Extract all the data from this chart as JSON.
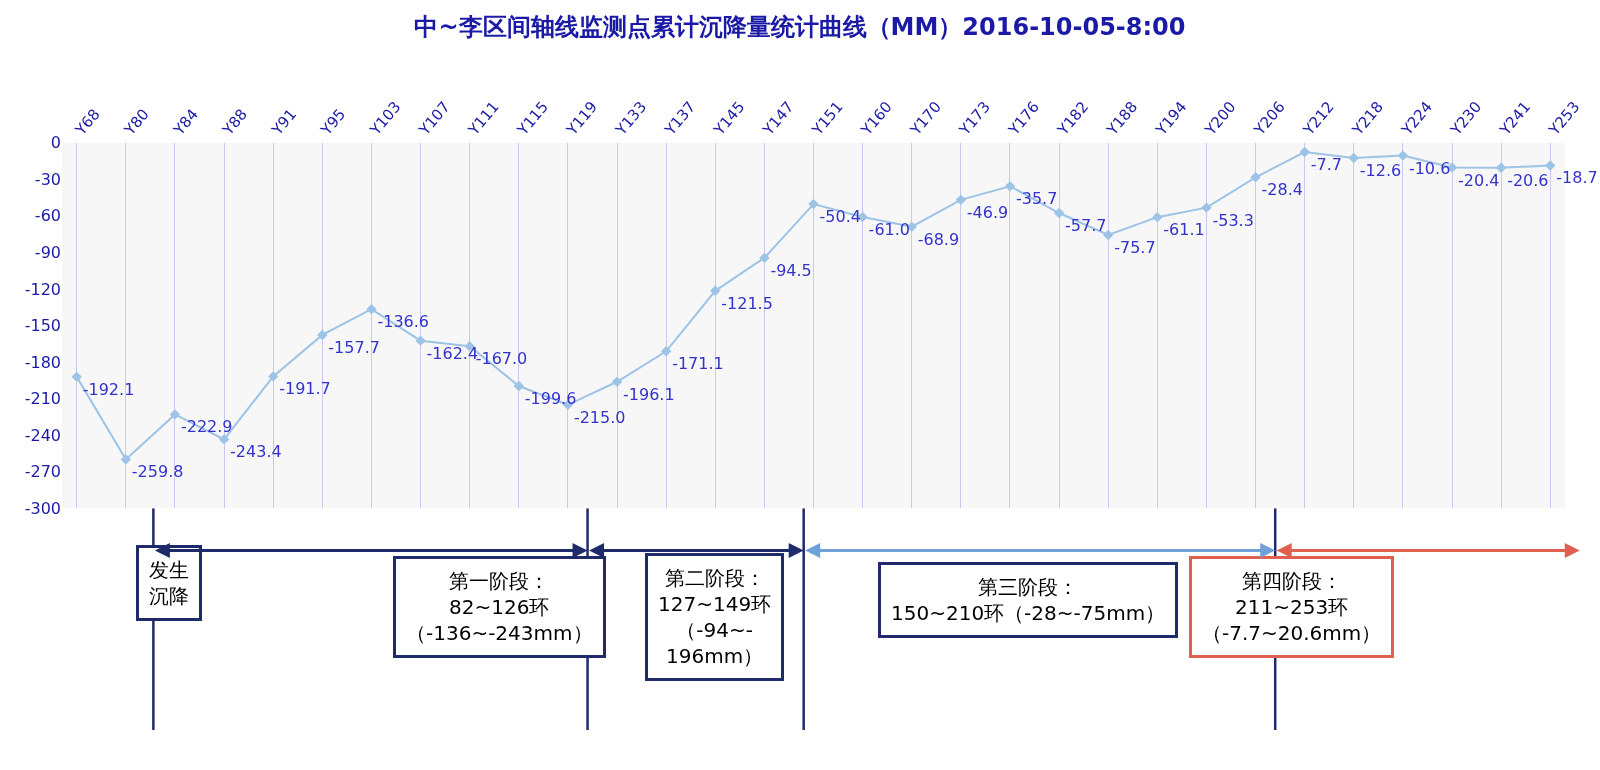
{
  "chart_data": {
    "type": "line",
    "title": "中~李区间轴线监测点累计沉降量统计曲线（MM）2016-10-05-8:00",
    "categories": [
      "Y68",
      "Y80",
      "Y84",
      "Y88",
      "Y91",
      "Y95",
      "Y103",
      "Y107",
      "Y111",
      "Y115",
      "Y119",
      "Y133",
      "Y137",
      "Y145",
      "Y147",
      "Y151",
      "Y160",
      "Y170",
      "Y173",
      "Y176",
      "Y182",
      "Y188",
      "Y194",
      "Y200",
      "Y206",
      "Y212",
      "Y218",
      "Y224",
      "Y230",
      "Y241",
      "Y253"
    ],
    "values": [
      -192.1,
      -259.8,
      -222.9,
      -243.4,
      -191.7,
      -157.7,
      -136.6,
      -162.4,
      -167.0,
      -199.6,
      -215.0,
      -196.1,
      -171.1,
      -121.5,
      -94.5,
      -50.4,
      -61.0,
      -68.9,
      -46.9,
      -35.7,
      -57.7,
      -75.7,
      -61.1,
      -53.3,
      -28.4,
      -7.7,
      -12.6,
      -10.6,
      -20.4,
      -20.6,
      -18.7
    ],
    "value_labels": [
      "-192.1",
      "-259.8",
      "-222.9",
      "-243.4",
      "-191.7",
      "-157.7",
      "-136.6",
      "-162.4",
      "-167.0",
      "-199.6",
      "-215.0",
      "-196.1",
      "-171.1",
      "-121.5",
      "-94.5",
      "-50.4",
      "-61.0",
      "-68.9",
      "-46.9",
      "-35.7",
      "-57.7",
      "-75.7",
      "-61.1",
      "-53.3",
      "-28.4",
      "-7.7",
      "-12.6",
      "-10.6",
      "-20.4",
      "-20.6",
      "-18.7"
    ],
    "color": "#9dc3e6",
    "marker": "diamond",
    "grid": "x",
    "ylim": [
      -300,
      0
    ],
    "yticks": [
      -300,
      -270,
      -240,
      -210,
      -180,
      -150,
      -120,
      -90,
      -60,
      -30,
      0
    ],
    "annotations": [
      "发生沉降",
      "第一阶段：82~126环（-136~-243mm）",
      "第二阶段：127~149环（-94~-196mm）",
      "第三阶段：150~210环（-28~-75mm）",
      "第四阶段：211~253环（-7.7~20.6mm）"
    ]
  }
}
